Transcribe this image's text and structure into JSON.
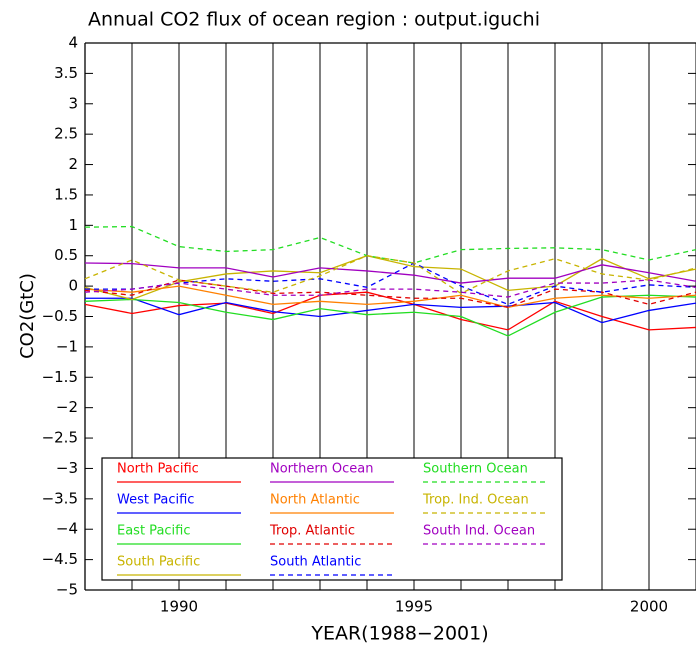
{
  "chart_data": {
    "type": "line",
    "title": "Annual CO2 flux of ocean region : output.iguchi",
    "xlabel": "YEAR(1988−2001)",
    "ylabel": "CO2(GtC)",
    "x": [
      1988,
      1989,
      1990,
      1991,
      1992,
      1993,
      1994,
      1995,
      1996,
      1997,
      1998,
      1999,
      2000,
      2001
    ],
    "xlim": [
      1988,
      2001
    ],
    "xticks": [
      1990,
      1995,
      2000
    ],
    "ylim": [
      -5,
      4
    ],
    "yticks": [
      {
        "value": -5,
        "label": "−5"
      },
      {
        "value": -4.5,
        "label": "−4.5"
      },
      {
        "value": -4,
        "label": "−4"
      },
      {
        "value": -3.5,
        "label": "−3.5"
      },
      {
        "value": -3,
        "label": "−3"
      },
      {
        "value": -2.5,
        "label": "−2.5"
      },
      {
        "value": -2,
        "label": "−2"
      },
      {
        "value": -1.5,
        "label": "−1.5"
      },
      {
        "value": -1,
        "label": "−1"
      },
      {
        "value": -0.5,
        "label": "−0.5"
      },
      0,
      0.5,
      1,
      1.5,
      2,
      2.5,
      3,
      3.5,
      4
    ],
    "series": [
      {
        "name": "North Pacific",
        "color": "#ff0000",
        "linestyle": "solid",
        "values": [
          -0.3,
          -0.45,
          -0.32,
          -0.28,
          -0.45,
          -0.15,
          -0.1,
          -0.3,
          -0.55,
          -0.72,
          -0.25,
          -0.5,
          -0.72,
          -0.68
        ]
      },
      {
        "name": "West Pacific",
        "color": "#0000ff",
        "linestyle": "solid",
        "values": [
          -0.2,
          -0.2,
          -0.47,
          -0.27,
          -0.42,
          -0.5,
          -0.4,
          -0.3,
          -0.35,
          -0.33,
          -0.27,
          -0.6,
          -0.4,
          -0.28
        ]
      },
      {
        "name": "East Pacific",
        "color": "#22dd22",
        "linestyle": "solid",
        "values": [
          -0.25,
          -0.22,
          -0.27,
          -0.43,
          -0.55,
          -0.37,
          -0.47,
          -0.43,
          -0.5,
          -0.82,
          -0.43,
          -0.18,
          -0.15,
          -0.18
        ]
      },
      {
        "name": "South Pacific",
        "color": "#c8b400",
        "linestyle": "solid",
        "values": [
          -0.02,
          -0.22,
          0.07,
          0.2,
          0.25,
          0.22,
          0.5,
          0.32,
          0.28,
          -0.07,
          0.0,
          0.45,
          0.12,
          0.28
        ]
      },
      {
        "name": "Northern Ocean",
        "color": "#a000c0",
        "linestyle": "solid",
        "values": [
          0.38,
          0.37,
          0.3,
          0.3,
          0.15,
          0.3,
          0.25,
          0.18,
          0.05,
          0.13,
          0.13,
          0.35,
          0.22,
          0.08
        ]
      },
      {
        "name": "North Atlantic",
        "color": "#ff8000",
        "linestyle": "solid",
        "values": [
          -0.05,
          -0.1,
          0.0,
          -0.15,
          -0.3,
          -0.25,
          -0.3,
          -0.25,
          -0.15,
          -0.35,
          -0.2,
          -0.15,
          -0.2,
          -0.15
        ]
      },
      {
        "name": "Trop. Atlantic",
        "color": "#e00000",
        "linestyle": "dashed",
        "values": [
          -0.07,
          -0.15,
          0.1,
          0.0,
          -0.12,
          -0.1,
          -0.15,
          -0.2,
          -0.2,
          -0.35,
          -0.05,
          -0.1,
          -0.3,
          -0.1
        ]
      },
      {
        "name": "South Atlantic",
        "color": "#0000ff",
        "linestyle": "dashed",
        "values": [
          -0.05,
          -0.05,
          0.05,
          0.12,
          0.08,
          0.12,
          -0.02,
          0.38,
          0.0,
          -0.3,
          0.0,
          -0.1,
          0.02,
          -0.02
        ]
      },
      {
        "name": "Southern Ocean",
        "color": "#22dd22",
        "linestyle": "dashed",
        "values": [
          0.97,
          0.98,
          0.65,
          0.57,
          0.6,
          0.8,
          0.5,
          0.38,
          0.6,
          0.62,
          0.63,
          0.6,
          0.43,
          0.6
        ]
      },
      {
        "name": "Trop. Ind. Ocean",
        "color": "#c8b400",
        "linestyle": "dashed",
        "values": [
          0.12,
          0.43,
          0.1,
          0.0,
          -0.1,
          0.17,
          0.5,
          0.38,
          -0.12,
          0.25,
          0.45,
          0.2,
          0.1,
          0.3
        ]
      },
      {
        "name": "South Ind. Ocean",
        "color": "#a000c0",
        "linestyle": "dashed",
        "values": [
          -0.1,
          -0.05,
          0.05,
          -0.05,
          -0.15,
          -0.15,
          -0.05,
          -0.05,
          -0.1,
          -0.18,
          0.05,
          0.05,
          0.1,
          -0.02
        ]
      }
    ]
  }
}
